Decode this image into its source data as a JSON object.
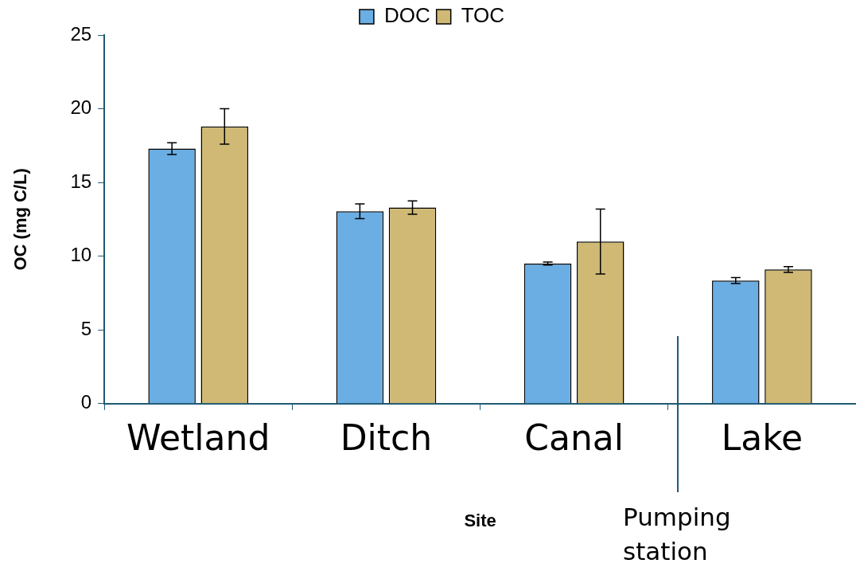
{
  "chart_data": {
    "type": "bar",
    "xlabel": "Site",
    "ylabel": "OC (mg C/L)",
    "categories": [
      "Wetland",
      "Ditch",
      "Canal",
      "Lake"
    ],
    "series": [
      {
        "name": "DOC",
        "color": "#6aaee4",
        "values": [
          17.3,
          13.05,
          9.5,
          8.35
        ],
        "errors": [
          0.4,
          0.5,
          0.1,
          0.2
        ]
      },
      {
        "name": "TOC",
        "color": "#cfb974",
        "values": [
          18.8,
          13.3,
          11.0,
          9.1
        ],
        "errors": [
          1.2,
          0.45,
          2.2,
          0.2
        ]
      }
    ],
    "ylim": [
      0,
      25
    ],
    "yticks": [
      0,
      5,
      10,
      15,
      20,
      25
    ],
    "grid": false,
    "legend": "top",
    "annotations": [
      "Pumping station"
    ]
  }
}
